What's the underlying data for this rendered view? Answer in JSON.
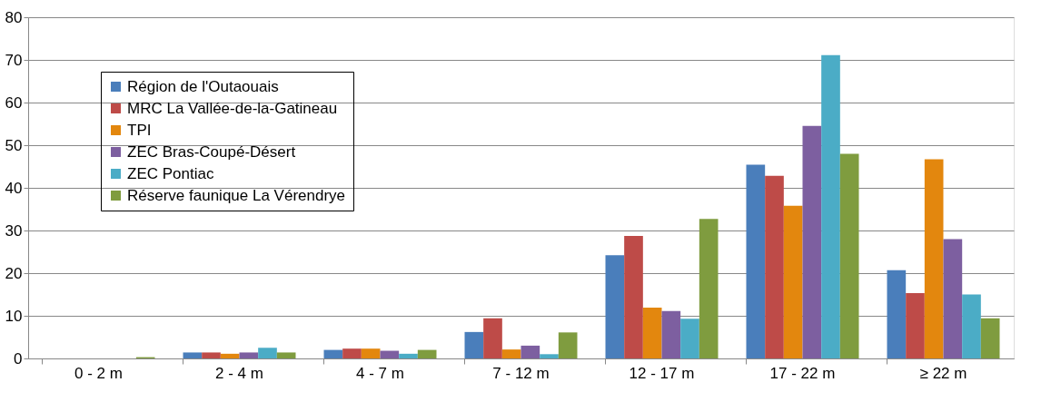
{
  "chart_data": {
    "type": "bar",
    "categories": [
      "0 - 2 m",
      "2 - 4 m",
      "4 - 7 m",
      "7 - 12 m",
      "12 - 17 m",
      "17 - 22 m",
      "≥ 22 m"
    ],
    "series": [
      {
        "name": "Région de l'Outaouais",
        "color": "#4a7ebb",
        "values": [
          0,
          1.4,
          2.0,
          6.2,
          24.2,
          45.4,
          20.7
        ]
      },
      {
        "name": "MRC La Vallée-de-la-Gatineau",
        "color": "#be4b48",
        "values": [
          0,
          1.4,
          2.3,
          9.4,
          28.7,
          42.8,
          15.3
        ]
      },
      {
        "name": "TPI",
        "color": "#e3870e",
        "values": [
          0,
          1.1,
          2.3,
          2.1,
          11.9,
          35.8,
          46.7
        ]
      },
      {
        "name": "ZEC Bras-Coupé-Désert",
        "color": "#7d5fa0",
        "values": [
          0,
          1.4,
          1.8,
          3.0,
          11.1,
          54.5,
          28.0
        ]
      },
      {
        "name": "ZEC Pontiac",
        "color": "#4bacc6",
        "values": [
          0,
          2.5,
          1.1,
          1.0,
          9.3,
          71.1,
          15.0
        ]
      },
      {
        "name": "Réserve faunique La Vérendrye",
        "color": "#7f9c3f",
        "values": [
          0.3,
          1.4,
          2.0,
          6.1,
          32.7,
          48.0,
          9.4
        ]
      }
    ],
    "ylim": [
      0,
      80
    ],
    "yticks": [
      0,
      10,
      20,
      30,
      40,
      50,
      60,
      70,
      80
    ],
    "grid": "y",
    "legend": "top left"
  }
}
